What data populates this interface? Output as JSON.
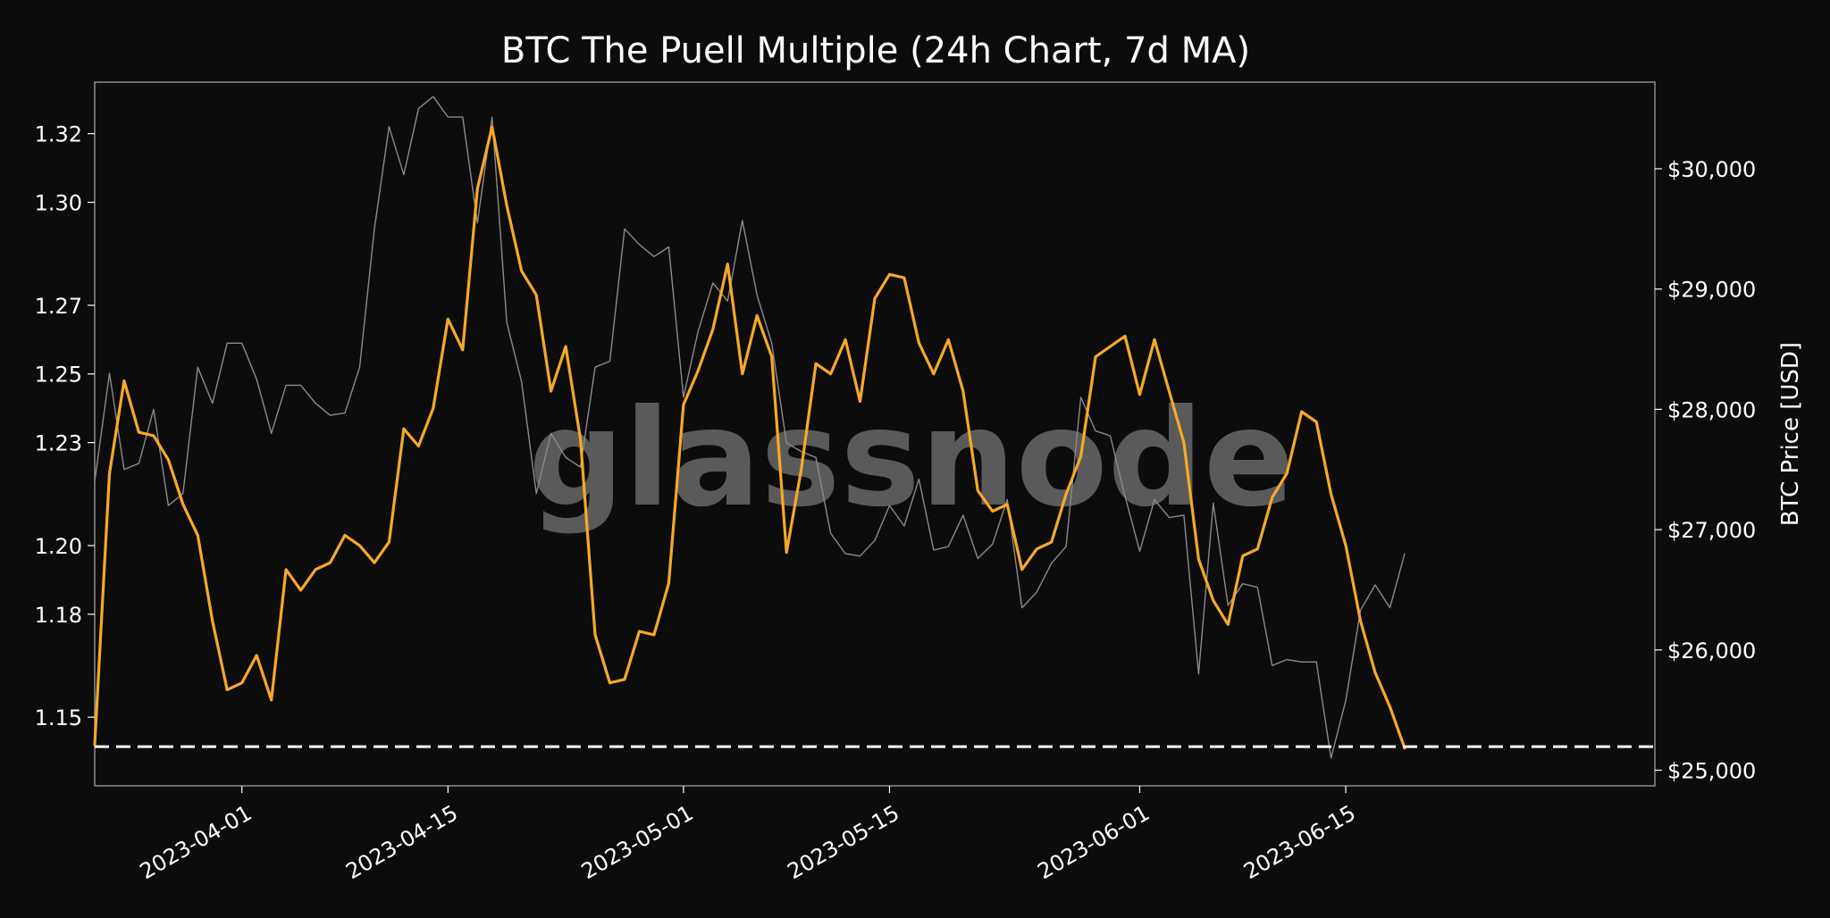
{
  "chart_data": {
    "type": "line",
    "title": "BTC The Puell Multiple (24h Chart, 7d MA)",
    "watermark": "glassnode",
    "xlabel": "",
    "ylabel": "",
    "y2label": "BTC Price [USD]",
    "x_ticks": [
      "2023-04-01",
      "2023-04-15",
      "2023-05-01",
      "2023-05-15",
      "2023-06-01",
      "2023-06-15"
    ],
    "y_ticks": [
      "1.15",
      "1.18",
      "1.20",
      "1.23",
      "1.25",
      "1.27",
      "1.30",
      "1.32"
    ],
    "y2_ticks": [
      "$25,000",
      "$26,000",
      "$27,000",
      "$28,000",
      "$29,000",
      "$30,000"
    ],
    "xlim": [
      "2023-03-22",
      "2023-07-06"
    ],
    "ylim": [
      1.13,
      1.335
    ],
    "y2lim": [
      24870,
      30720
    ],
    "reference_line": {
      "value": 1.1414,
      "style": "dashed",
      "color": "#ffffff"
    },
    "x": [
      "2023-03-22",
      "2023-03-23",
      "2023-03-24",
      "2023-03-25",
      "2023-03-26",
      "2023-03-27",
      "2023-03-28",
      "2023-03-29",
      "2023-03-30",
      "2023-03-31",
      "2023-04-01",
      "2023-04-02",
      "2023-04-03",
      "2023-04-04",
      "2023-04-05",
      "2023-04-06",
      "2023-04-07",
      "2023-04-08",
      "2023-04-09",
      "2023-04-10",
      "2023-04-11",
      "2023-04-12",
      "2023-04-13",
      "2023-04-14",
      "2023-04-15",
      "2023-04-16",
      "2023-04-17",
      "2023-04-18",
      "2023-04-19",
      "2023-04-20",
      "2023-04-21",
      "2023-04-22",
      "2023-04-23",
      "2023-04-24",
      "2023-04-25",
      "2023-04-26",
      "2023-04-27",
      "2023-04-28",
      "2023-04-29",
      "2023-04-30",
      "2023-05-01",
      "2023-05-02",
      "2023-05-03",
      "2023-05-04",
      "2023-05-05",
      "2023-05-06",
      "2023-05-07",
      "2023-05-08",
      "2023-05-09",
      "2023-05-10",
      "2023-05-11",
      "2023-05-12",
      "2023-05-13",
      "2023-05-14",
      "2023-05-15",
      "2023-05-16",
      "2023-05-17",
      "2023-05-18",
      "2023-05-19",
      "2023-05-20",
      "2023-05-21",
      "2023-05-22",
      "2023-05-23",
      "2023-05-24",
      "2023-05-25",
      "2023-05-26",
      "2023-05-27",
      "2023-05-28",
      "2023-05-29",
      "2023-05-30",
      "2023-05-31",
      "2023-06-01",
      "2023-06-02",
      "2023-06-03",
      "2023-06-04",
      "2023-06-05",
      "2023-06-06",
      "2023-06-07",
      "2023-06-08",
      "2023-06-09",
      "2023-06-10",
      "2023-06-11",
      "2023-06-12",
      "2023-06-13",
      "2023-06-14",
      "2023-06-15",
      "2023-06-16",
      "2023-06-17",
      "2023-06-18",
      "2023-06-19",
      "2023-06-20"
    ],
    "series": [
      {
        "name": "",
        "axis": "left",
        "color": "#f7a928",
        "values": [
          1.142,
          1.221,
          1.248,
          1.233,
          1.232,
          1.225,
          1.212,
          1.203,
          1.178,
          1.158,
          1.16,
          1.168,
          1.155,
          1.193,
          1.187,
          1.193,
          1.195,
          1.203,
          1.2,
          1.195,
          1.201,
          1.234,
          1.229,
          1.24,
          1.266,
          1.257,
          1.304,
          1.322,
          1.299,
          1.28,
          1.273,
          1.245,
          1.258,
          1.231,
          1.174,
          1.16,
          1.161,
          1.175,
          1.174,
          1.189,
          1.241,
          1.251,
          1.263,
          1.282,
          1.25,
          1.267,
          1.255,
          1.198,
          1.222,
          1.253,
          1.25,
          1.26,
          1.242,
          1.272,
          1.279,
          1.278,
          1.259,
          1.25,
          1.26,
          1.245,
          1.216,
          1.21,
          1.212,
          1.193,
          1.199,
          1.201,
          1.215,
          1.226,
          1.255,
          1.258,
          1.261,
          1.244,
          1.26,
          1.245,
          1.23,
          1.196,
          1.184,
          1.177,
          1.197,
          1.199,
          1.214,
          1.221,
          1.239,
          1.236,
          1.215,
          1.2,
          1.178,
          1.163,
          1.153,
          1.141,
          null
        ]
      },
      {
        "name": "",
        "axis": "right",
        "color": "#8a8a8a",
        "values": [
          27400,
          28300,
          27500,
          27550,
          28000,
          27200,
          27300,
          28350,
          28050,
          28550,
          28550,
          28250,
          27800,
          28200,
          28200,
          28050,
          27950,
          27970,
          28350,
          29500,
          30350,
          29950,
          30500,
          30600,
          30430,
          30430,
          29550,
          30430,
          28720,
          28230,
          27300,
          27800,
          27600,
          27520,
          28350,
          28400,
          29500,
          29370,
          29270,
          29350,
          28100,
          28650,
          29050,
          28900,
          29570,
          28950,
          28550,
          27720,
          27650,
          27600,
          26970,
          26800,
          26780,
          26910,
          27200,
          27030,
          27420,
          26830,
          26860,
          27120,
          26760,
          26880,
          27250,
          26350,
          26480,
          26720,
          26860,
          28100,
          27820,
          27780,
          27280,
          26820,
          27250,
          27100,
          27120,
          25800,
          27220,
          26370,
          26550,
          26520,
          25870,
          25920,
          25900,
          25900,
          25100,
          25580,
          26330,
          26540,
          26350,
          26800,
          null
        ]
      }
    ]
  }
}
